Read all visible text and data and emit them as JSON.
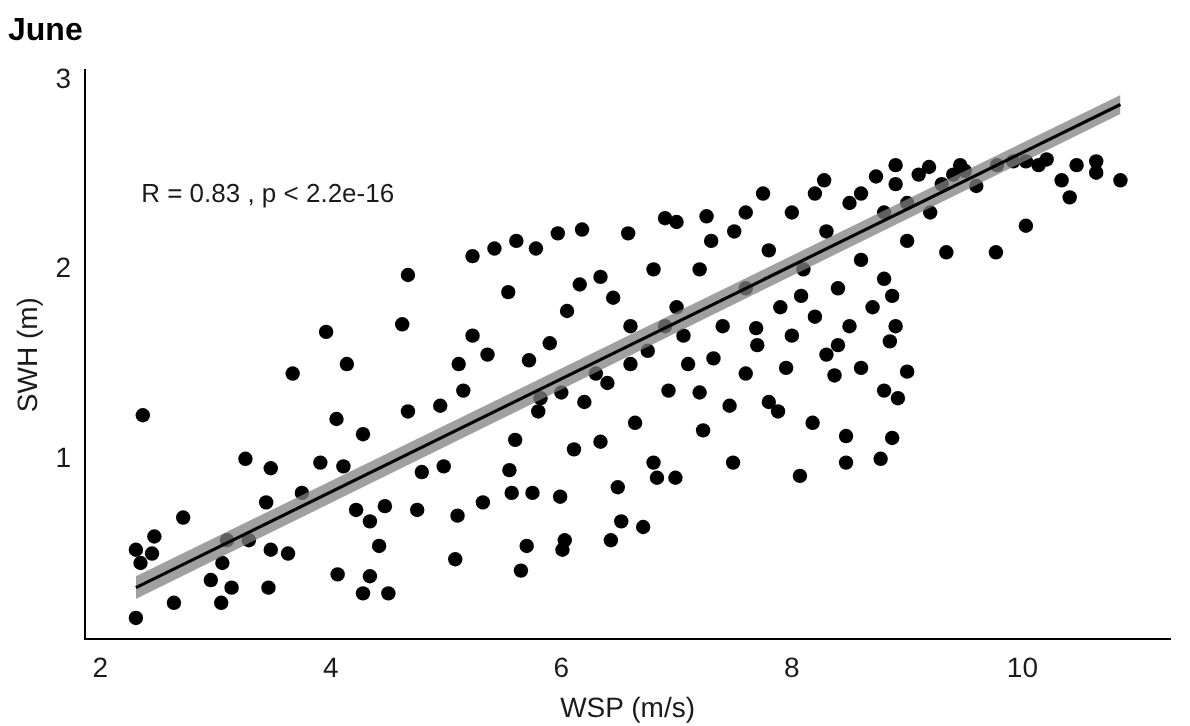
{
  "chart_data": {
    "type": "scatter",
    "title": "June",
    "xlabel": "WSP (m/s)",
    "ylabel": "SWH (m)",
    "annotations": [
      "R = 0.83 , p < 2.2e-16"
    ],
    "xlim": [
      1.87,
      11.28
    ],
    "ylim": [
      0.05,
      3.05
    ],
    "xticks": [
      2,
      4,
      6,
      8,
      10
    ],
    "yticks": [
      1,
      2,
      3
    ],
    "series": [
      {
        "color": "#000000",
        "marker": "circle",
        "x": [
          2.31,
          2.37,
          2.31,
          2.35,
          2.47,
          2.45,
          2.64,
          2.72,
          2.96,
          3.05,
          3.06,
          3.1,
          3.14,
          3.26,
          3.29,
          3.46,
          3.48,
          3.48,
          3.44,
          3.63,
          3.67,
          3.75,
          3.91,
          3.96,
          4.05,
          4.06,
          4.11,
          4.14,
          4.22,
          4.28,
          4.28,
          4.34,
          4.34,
          4.42,
          4.5,
          4.47,
          4.62,
          4.67,
          4.67,
          4.75,
          4.79,
          4.95,
          4.98,
          5.08,
          5.1,
          5.11,
          5.15,
          5.23,
          5.23,
          5.32,
          5.36,
          5.42,
          5.54,
          5.55,
          5.57,
          5.61,
          5.65,
          5.7,
          5.72,
          5.75,
          5.78,
          5.82,
          5.9,
          5.97,
          5.99,
          6.01,
          6.03,
          6.05,
          6.11,
          6.16,
          6.18,
          6.34,
          6.34,
          6.43,
          6.45,
          6.49,
          6.52,
          6.58,
          6.64,
          6.71,
          6.75,
          6.8,
          6.83,
          6.9,
          6.93,
          6.99,
          7.06,
          7.23,
          7.26,
          7.32,
          7.46,
          7.49,
          7.69,
          7.75,
          7.88,
          7.95,
          8.07,
          8.08,
          8.18,
          8.28,
          8.37,
          8.47,
          8.47,
          8.6,
          8.77,
          8.8,
          8.85,
          8.87,
          8.92,
          9.0,
          8.87,
          8.73,
          8.9,
          9.19,
          9.34,
          9.46,
          9.6,
          9.77,
          9.78,
          9.92,
          10.03,
          10.14,
          10.21,
          10.03,
          10.34,
          10.41,
          10.47,
          10.64,
          10.64,
          10.85,
          7.0,
          7.2,
          7.4,
          7.5,
          7.6,
          7.7,
          7.8,
          7.9,
          8.0,
          8.0,
          8.1,
          8.2,
          8.3,
          8.3,
          8.4,
          8.5,
          8.5,
          8.6,
          8.7,
          8.8,
          8.8,
          8.9,
          9.0,
          9.0,
          9.1,
          9.2,
          9.3,
          9.4,
          9.5,
          8.6,
          8.2,
          7.6,
          7.3,
          7.0,
          6.8,
          6.9,
          6.6,
          6.4,
          6.2,
          6.6,
          7.1,
          7.6,
          8.4,
          8.9,
          6.3,
          6.0,
          5.8,
          5.6,
          7.2,
          7.8
        ],
        "values": [
          0.16,
          1.23,
          0.52,
          0.45,
          0.59,
          0.5,
          0.24,
          0.69,
          0.36,
          0.24,
          0.45,
          0.57,
          0.32,
          1.0,
          0.57,
          0.32,
          0.52,
          0.95,
          0.77,
          0.5,
          1.45,
          0.82,
          0.98,
          1.67,
          1.21,
          0.39,
          0.96,
          1.5,
          0.73,
          0.29,
          1.13,
          0.38,
          0.67,
          0.54,
          0.29,
          0.75,
          1.71,
          1.97,
          1.25,
          0.73,
          0.93,
          1.28,
          0.96,
          0.47,
          0.7,
          1.5,
          1.36,
          2.07,
          1.65,
          0.77,
          1.55,
          2.11,
          1.88,
          0.94,
          0.82,
          2.15,
          0.41,
          0.54,
          1.52,
          0.82,
          2.11,
          1.32,
          1.61,
          2.19,
          0.8,
          0.52,
          0.57,
          1.78,
          1.05,
          1.92,
          2.21,
          1.96,
          1.09,
          0.57,
          1.85,
          0.85,
          0.67,
          2.19,
          1.19,
          0.64,
          1.57,
          0.98,
          0.9,
          2.27,
          1.36,
          0.9,
          1.65,
          1.15,
          2.28,
          1.53,
          1.28,
          0.98,
          1.69,
          2.4,
          1.25,
          1.48,
          0.91,
          1.86,
          1.19,
          2.47,
          1.44,
          0.98,
          1.12,
          1.48,
          1.0,
          1.36,
          1.62,
          1.11,
          1.32,
          1.46,
          1.86,
          2.49,
          2.55,
          2.54,
          2.09,
          2.55,
          2.44,
          2.09,
          2.55,
          2.57,
          2.57,
          2.55,
          2.58,
          2.23,
          2.47,
          2.38,
          2.55,
          2.57,
          2.51,
          2.47,
          1.8,
          2.0,
          1.7,
          2.2,
          1.9,
          1.6,
          2.1,
          1.8,
          2.3,
          1.65,
          2.0,
          1.75,
          2.2,
          1.55,
          1.9,
          2.35,
          1.7,
          2.05,
          1.8,
          2.3,
          1.95,
          2.45,
          2.15,
          2.35,
          2.5,
          2.3,
          2.45,
          2.5,
          2.52,
          2.4,
          2.4,
          2.3,
          2.15,
          2.25,
          2.0,
          1.7,
          1.5,
          1.4,
          1.3,
          1.7,
          1.5,
          1.45,
          1.6,
          1.7,
          1.45,
          1.35,
          1.25,
          1.1,
          1.35,
          1.3
        ]
      },
      {
        "type": "line",
        "color": "#000000",
        "marker": "none",
        "x": [
          2.31,
          10.85
        ],
        "values": [
          0.32,
          2.87
        ],
        "lower": [
          0.26,
          2.82
        ],
        "upper": [
          0.38,
          2.92
        ]
      }
    ]
  }
}
